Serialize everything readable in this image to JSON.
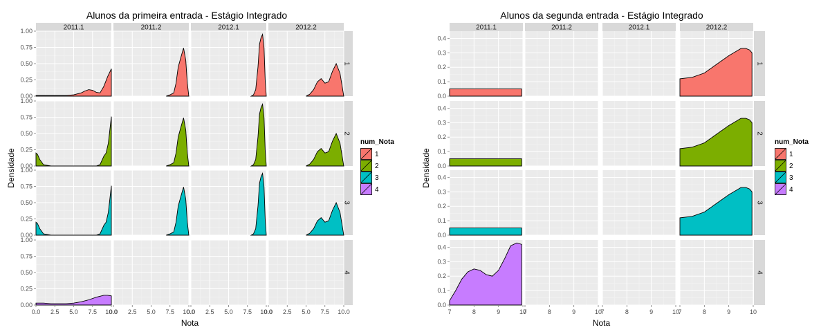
{
  "colors": {
    "1": "#F8766D",
    "2": "#7CAE00",
    "3": "#00BFC4",
    "4": "#C77CFF",
    "panel": "#EBEBEB",
    "strip": "#D9D9D9",
    "grid": "#FFFFFF"
  },
  "chart_data": [
    {
      "type": "area",
      "title": "Alunos da primeira entrada -  Estágio Integrado",
      "xlabel": "Nota",
      "ylabel": "Densidade",
      "xlim": [
        0,
        10
      ],
      "ylim": [
        0,
        1
      ],
      "x_ticks": [
        "0.0",
        "2.5",
        "5.0",
        "7.5",
        "10.0"
      ],
      "x_tick_values": [
        0,
        2.5,
        5,
        7.5,
        10
      ],
      "y_ticks": [
        "0.00",
        "0.25",
        "0.50",
        "0.75",
        "1.00"
      ],
      "y_tick_values": [
        0,
        0.25,
        0.5,
        0.75,
        1.0
      ],
      "columns": [
        "2011.1",
        "2011.2",
        "2012.1",
        "2012.2"
      ],
      "rows": [
        "1",
        "2",
        "3",
        "4"
      ],
      "legend": {
        "title": "num_Nota",
        "entries": [
          "1",
          "2",
          "3",
          "4"
        ],
        "position": "right"
      },
      "grid": true,
      "panels": [
        {
          "row": "1",
          "col": "2011.1",
          "x": [
            0,
            1,
            2,
            3,
            4,
            5,
            6,
            6.5,
            7,
            7.5,
            8,
            8.5,
            9,
            9.5,
            10
          ],
          "y": [
            0.01,
            0.01,
            0.01,
            0.01,
            0.01,
            0.02,
            0.05,
            0.08,
            0.1,
            0.09,
            0.06,
            0.05,
            0.15,
            0.3,
            0.42
          ]
        },
        {
          "row": "1",
          "col": "2011.2",
          "x": [
            7,
            7.5,
            8,
            8.3,
            8.6,
            9,
            9.3,
            9.6,
            9.8,
            10
          ],
          "y": [
            0,
            0.02,
            0.05,
            0.2,
            0.45,
            0.62,
            0.74,
            0.55,
            0.2,
            0
          ]
        },
        {
          "row": "1",
          "col": "2012.1",
          "x": [
            8,
            8.3,
            8.6,
            8.9,
            9.1,
            9.3,
            9.5,
            9.7,
            9.85,
            10
          ],
          "y": [
            0,
            0.02,
            0.1,
            0.45,
            0.8,
            0.9,
            0.95,
            0.75,
            0.25,
            0
          ]
        },
        {
          "row": "1",
          "col": "2012.2",
          "x": [
            5,
            5.5,
            6,
            6.5,
            7,
            7.5,
            8,
            8.5,
            9,
            9.5,
            10
          ],
          "y": [
            0,
            0.03,
            0.1,
            0.22,
            0.27,
            0.2,
            0.22,
            0.38,
            0.5,
            0.35,
            0
          ]
        },
        {
          "row": "2",
          "col": "2011.1",
          "x": [
            0,
            0.2,
            0.5,
            1,
            1.5,
            2,
            3,
            5,
            7,
            8,
            8.5,
            9,
            9.3,
            9.6,
            10
          ],
          "y": [
            0.2,
            0.18,
            0.1,
            0.02,
            0.01,
            0,
            0,
            0,
            0,
            0,
            0.02,
            0.15,
            0.2,
            0.35,
            0.76
          ]
        },
        {
          "row": "2",
          "col": "2011.2",
          "x": [
            7,
            7.5,
            8,
            8.3,
            8.6,
            9,
            9.3,
            9.6,
            9.8,
            10
          ],
          "y": [
            0,
            0.02,
            0.05,
            0.2,
            0.45,
            0.62,
            0.74,
            0.55,
            0.2,
            0
          ]
        },
        {
          "row": "2",
          "col": "2012.1",
          "x": [
            8,
            8.3,
            8.6,
            8.9,
            9.1,
            9.3,
            9.5,
            9.7,
            9.85,
            10
          ],
          "y": [
            0,
            0.02,
            0.1,
            0.45,
            0.8,
            0.9,
            0.95,
            0.75,
            0.25,
            0
          ]
        },
        {
          "row": "2",
          "col": "2012.2",
          "x": [
            5,
            5.5,
            6,
            6.5,
            7,
            7.5,
            8,
            8.5,
            9,
            9.5,
            10
          ],
          "y": [
            0,
            0.03,
            0.1,
            0.22,
            0.27,
            0.2,
            0.22,
            0.38,
            0.5,
            0.35,
            0
          ]
        },
        {
          "row": "3",
          "col": "2011.1",
          "x": [
            0,
            0.2,
            0.5,
            1,
            1.5,
            2,
            3,
            5,
            7,
            8,
            8.5,
            9,
            9.3,
            9.6,
            10
          ],
          "y": [
            0.2,
            0.18,
            0.1,
            0.02,
            0.01,
            0,
            0,
            0,
            0,
            0,
            0.02,
            0.15,
            0.2,
            0.35,
            0.76
          ]
        },
        {
          "row": "3",
          "col": "2011.2",
          "x": [
            7,
            7.5,
            8,
            8.3,
            8.6,
            9,
            9.3,
            9.6,
            9.8,
            10
          ],
          "y": [
            0,
            0.02,
            0.05,
            0.2,
            0.45,
            0.62,
            0.74,
            0.55,
            0.2,
            0
          ]
        },
        {
          "row": "3",
          "col": "2012.1",
          "x": [
            8,
            8.3,
            8.6,
            8.9,
            9.1,
            9.3,
            9.5,
            9.7,
            9.85,
            10
          ],
          "y": [
            0,
            0.02,
            0.1,
            0.45,
            0.8,
            0.9,
            0.95,
            0.75,
            0.25,
            0
          ]
        },
        {
          "row": "3",
          "col": "2012.2",
          "x": [
            5,
            5.5,
            6,
            6.5,
            7,
            7.5,
            8,
            8.5,
            9,
            9.5,
            10
          ],
          "y": [
            0,
            0.03,
            0.1,
            0.22,
            0.27,
            0.2,
            0.22,
            0.38,
            0.5,
            0.35,
            0
          ]
        },
        {
          "row": "4",
          "col": "2011.1",
          "x": [
            0,
            1,
            2,
            3,
            4,
            5,
            6,
            7,
            8,
            9,
            9.5,
            10
          ],
          "y": [
            0.03,
            0.03,
            0.02,
            0.02,
            0.02,
            0.03,
            0.05,
            0.08,
            0.12,
            0.15,
            0.15,
            0.14
          ]
        }
      ]
    },
    {
      "type": "area",
      "title": "Alunos da segunda entrada -  Estágio Integrado",
      "xlabel": "Nota",
      "ylabel": "Densidade",
      "xlim": [
        7,
        10
      ],
      "ylim": [
        0,
        0.45
      ],
      "x_ticks": [
        "7",
        "8",
        "9",
        "10"
      ],
      "x_tick_values": [
        7,
        8,
        9,
        10
      ],
      "y_ticks": [
        "0.0",
        "0.1",
        "0.2",
        "0.3",
        "0.4"
      ],
      "y_tick_values": [
        0,
        0.1,
        0.2,
        0.3,
        0.4
      ],
      "columns": [
        "2011.1",
        "2011.2",
        "2012.1",
        "2012.2"
      ],
      "rows": [
        "1",
        "2",
        "3",
        "4"
      ],
      "legend": {
        "title": "num_Nota",
        "entries": [
          "1",
          "2",
          "3",
          "4"
        ],
        "position": "right"
      },
      "grid": true,
      "panels": [
        {
          "row": "1",
          "col": "2011.1",
          "x": [
            7,
            9.95
          ],
          "y": [
            0.05,
            0.05
          ]
        },
        {
          "row": "1",
          "col": "2012.2",
          "x": [
            7,
            7.5,
            8,
            8.5,
            9,
            9.3,
            9.5,
            9.7,
            9.85,
            9.95
          ],
          "y": [
            0.12,
            0.13,
            0.16,
            0.22,
            0.28,
            0.31,
            0.33,
            0.33,
            0.32,
            0.3
          ]
        },
        {
          "row": "2",
          "col": "2011.1",
          "x": [
            7,
            9.95
          ],
          "y": [
            0.05,
            0.05
          ]
        },
        {
          "row": "2",
          "col": "2012.2",
          "x": [
            7,
            7.5,
            8,
            8.5,
            9,
            9.3,
            9.5,
            9.7,
            9.85,
            9.95
          ],
          "y": [
            0.12,
            0.13,
            0.16,
            0.22,
            0.28,
            0.31,
            0.33,
            0.33,
            0.32,
            0.3
          ]
        },
        {
          "row": "3",
          "col": "2011.1",
          "x": [
            7,
            9.95
          ],
          "y": [
            0.05,
            0.05
          ]
        },
        {
          "row": "3",
          "col": "2012.2",
          "x": [
            7,
            7.5,
            8,
            8.5,
            9,
            9.3,
            9.5,
            9.7,
            9.85,
            9.95
          ],
          "y": [
            0.12,
            0.13,
            0.16,
            0.22,
            0.28,
            0.31,
            0.33,
            0.33,
            0.32,
            0.3
          ]
        },
        {
          "row": "4",
          "col": "2011.1",
          "x": [
            7,
            7.25,
            7.5,
            7.75,
            8,
            8.25,
            8.5,
            8.75,
            9,
            9.25,
            9.5,
            9.75,
            9.95
          ],
          "y": [
            0.03,
            0.1,
            0.18,
            0.23,
            0.25,
            0.24,
            0.21,
            0.2,
            0.24,
            0.32,
            0.41,
            0.43,
            0.42
          ]
        }
      ]
    }
  ]
}
